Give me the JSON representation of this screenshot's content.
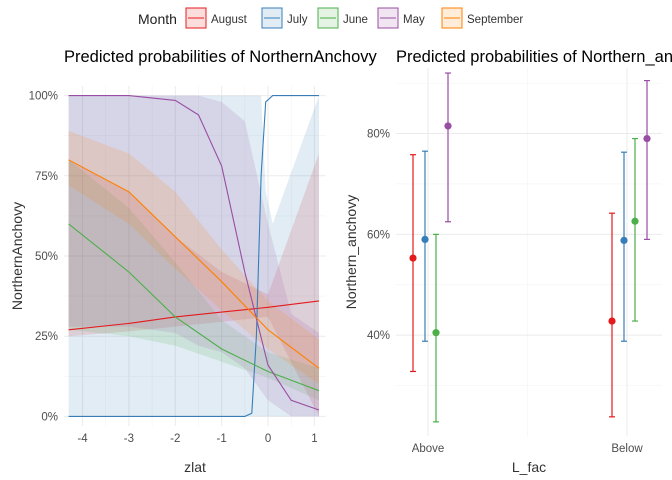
{
  "legend": {
    "title": "Month",
    "position": "top",
    "entries": [
      {
        "name": "August",
        "color": "#E41A1C"
      },
      {
        "name": "July",
        "color": "#377EB8"
      },
      {
        "name": "June",
        "color": "#4DAF4A"
      },
      {
        "name": "May",
        "color": "#984EA3"
      },
      {
        "name": "September",
        "color": "#FF7F00"
      }
    ]
  },
  "chart_data": [
    {
      "type": "line",
      "title": "Predicted probabilities of NorthernAnchovy",
      "xlabel": "zlat",
      "ylabel": "NorthernAnchovy",
      "xlim": [
        -4.4,
        1.25
      ],
      "ylim": [
        -0.03,
        1.03
      ],
      "xticks": [
        -4,
        -3,
        -2,
        -1,
        0,
        1
      ],
      "xtick_labels": [
        "-4",
        "-3",
        "-2",
        "-1",
        "0",
        "1"
      ],
      "yticks": [
        0,
        0.25,
        0.5,
        0.75,
        1
      ],
      "ytick_labels": [
        "0%",
        "25%",
        "50%",
        "75%",
        "100%"
      ],
      "grid": true,
      "series": [
        {
          "name": "August",
          "color": "#E41A1C",
          "x": [
            -4.3,
            -3,
            -2,
            -1,
            0,
            1.1
          ],
          "y": [
            0.27,
            0.29,
            0.31,
            0.325,
            0.34,
            0.36
          ],
          "lower": [
            0.25,
            0.265,
            0.28,
            0.295,
            0.31,
            0.0
          ],
          "upper": [
            0.8,
            0.7,
            0.56,
            0.45,
            0.38,
            0.82
          ]
        },
        {
          "name": "July",
          "color": "#377EB8",
          "x": [
            -4.3,
            -1,
            -0.5,
            -0.35,
            -0.25,
            -0.15,
            -0.05,
            0.1,
            1.1
          ],
          "y": [
            0.0,
            0.0,
            0.0,
            0.01,
            0.25,
            0.75,
            0.98,
            1.0,
            1.0
          ],
          "lower": [
            0.0,
            0.0,
            0.0,
            0.0,
            0.0,
            0.0,
            0.0,
            0.0,
            0.0
          ],
          "upper": [
            1.0,
            1.0,
            1.0,
            1.0,
            1.0,
            1.0,
            0.7,
            0.6,
            1.0
          ]
        },
        {
          "name": "June",
          "color": "#4DAF4A",
          "x": [
            -4.3,
            -3,
            -2,
            -1,
            0,
            1.1
          ],
          "y": [
            0.6,
            0.45,
            0.31,
            0.21,
            0.14,
            0.08
          ],
          "lower": [
            0.27,
            0.25,
            0.22,
            0.17,
            0.12,
            0.05
          ],
          "upper": [
            0.8,
            0.65,
            0.48,
            0.3,
            0.2,
            0.15
          ]
        },
        {
          "name": "May",
          "color": "#984EA3",
          "x": [
            -4.3,
            -3,
            -2,
            -1.5,
            -1,
            -0.5,
            0,
            0.5,
            1.1
          ],
          "y": [
            1.0,
            1.0,
            0.985,
            0.94,
            0.78,
            0.45,
            0.16,
            0.05,
            0.02
          ],
          "lower": [
            0.28,
            0.28,
            0.26,
            0.22,
            0.2,
            0.15,
            0.05,
            0.0,
            0.0
          ],
          "upper": [
            1.0,
            1.0,
            1.0,
            1.0,
            0.98,
            0.92,
            0.6,
            0.32,
            0.26
          ]
        },
        {
          "name": "September",
          "color": "#FF7F00",
          "x": [
            -4.3,
            -3,
            -2,
            -1,
            0,
            1.1
          ],
          "y": [
            0.8,
            0.7,
            0.56,
            0.42,
            0.27,
            0.15
          ],
          "lower": [
            0.72,
            0.6,
            0.46,
            0.33,
            0.21,
            0.1
          ],
          "upper": [
            0.89,
            0.82,
            0.7,
            0.52,
            0.36,
            0.24
          ]
        }
      ]
    },
    {
      "type": "scatter",
      "title": "Predicted probabilities of Northern_anchovy",
      "xlabel": "L_fac",
      "ylabel": "Northern_anchovy",
      "categories": [
        "Above",
        "Below"
      ],
      "ylim": [
        0.2,
        0.93
      ],
      "yticks": [
        0.4,
        0.6,
        0.8
      ],
      "ytick_labels": [
        "40%",
        "60%",
        "80%"
      ],
      "grid": true,
      "series": [
        {
          "name": "August",
          "color": "#E41A1C",
          "values": [
            0.553,
            0.428
          ],
          "lower": [
            0.328,
            0.238
          ],
          "upper": [
            0.758,
            0.642
          ]
        },
        {
          "name": "July",
          "color": "#377EB8",
          "values": [
            0.59,
            0.588
          ],
          "lower": [
            0.388,
            0.388
          ],
          "upper": [
            0.765,
            0.763
          ]
        },
        {
          "name": "June",
          "color": "#4DAF4A",
          "values": [
            0.405,
            0.626
          ],
          "lower": [
            0.228,
            0.428
          ],
          "upper": [
            0.6,
            0.79
          ]
        },
        {
          "name": "May",
          "color": "#984EA3",
          "values": [
            0.815,
            0.79
          ],
          "lower": [
            0.625,
            0.59
          ],
          "upper": [
            0.92,
            0.905
          ]
        }
      ]
    }
  ]
}
